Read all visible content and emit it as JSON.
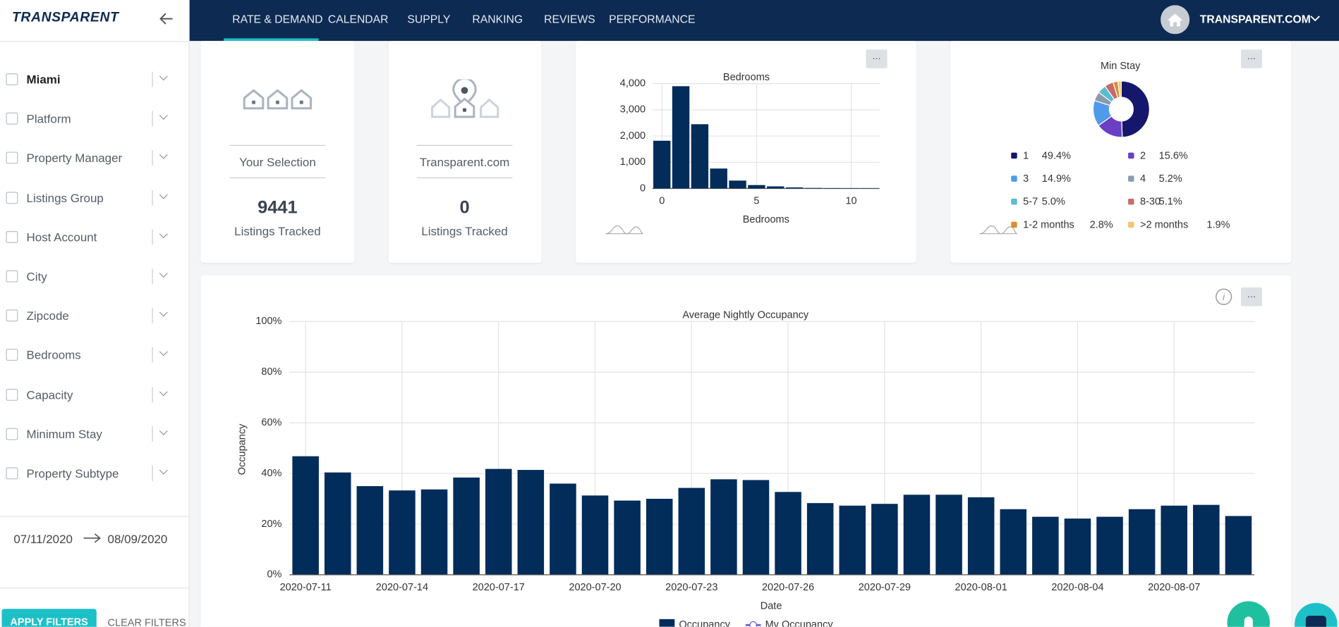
{
  "nav": {
    "brand": "TRANSPARENT",
    "tabs": [
      "RATE & DEMAND",
      "CALENDAR",
      "SUPPLY",
      "RANKING",
      "REVIEWS",
      "PERFORMANCE"
    ],
    "account": "TRANSPARENT.COM"
  },
  "sidebar": {
    "filters": [
      "Miami",
      "Platform",
      "Property Manager",
      "Listings Group",
      "Host Account",
      "City",
      "Zipcode",
      "Bedrooms",
      "Capacity",
      "Minimum Stay",
      "Property Subtype"
    ],
    "date_from": "07/11/2020",
    "date_to": "08/09/2020",
    "apply": "APPLY FILTERS",
    "clear": "CLEAR FILTERS"
  },
  "cards": [
    {
      "label": "Your Selection",
      "value": "9441",
      "caption": "Listings Tracked"
    },
    {
      "label": "Transparent.com",
      "value": "0",
      "caption": "Listings Tracked"
    }
  ],
  "chart_data": [
    {
      "type": "histogram",
      "title": "Bedrooms",
      "x_label": "Bedrooms",
      "color": "#022c5a",
      "bins": [
        -0.5,
        0.5,
        1.5,
        2.5,
        3.5,
        4.5,
        5.5,
        6.5,
        7.5,
        8.5,
        9.5,
        10.5,
        11.5
      ],
      "values": [
        1820,
        3900,
        2450,
        760,
        300,
        130,
        80,
        40,
        20,
        15,
        10,
        8
      ],
      "xlim": [
        -0.5,
        11.5
      ],
      "xticks": [
        0,
        5,
        10
      ],
      "ylim": [
        0,
        4000
      ],
      "yticks": [
        0,
        {
          "value": 1000,
          "label": "1,000"
        },
        {
          "value": 2000,
          "label": "2,000"
        },
        {
          "value": 3000,
          "label": "3,000"
        },
        {
          "value": 4000,
          "label": "4,000"
        }
      ],
      "grid": true
    },
    {
      "type": "pie",
      "title": "Min Stay",
      "donut": true,
      "categories": [
        "1",
        "2",
        "3",
        "4",
        "5-7",
        "8-30",
        "1-2 months",
        ">2 months"
      ],
      "values": [
        49.4,
        15.6,
        14.9,
        5.2,
        5.0,
        5.1,
        2.8,
        1.9
      ],
      "value_labels": [
        "49.4%",
        "15.6%",
        "14.9%",
        "5.2%",
        "5.0%",
        "5.1%",
        "2.8%",
        "1.9%"
      ],
      "colors": [
        "#14176b",
        "#6a3fc4",
        "#4f9bea",
        "#8a9bad",
        "#5bbccc",
        "#c96a6a",
        "#d9902f",
        "#f3c46f"
      ]
    },
    {
      "type": "bar",
      "title": "Average Nightly Occupancy",
      "x_label": "Date",
      "y_label": "Occupancy",
      "categories": [
        "2020-07-11",
        null,
        null,
        "2020-07-14",
        null,
        null,
        "2020-07-17",
        null,
        null,
        "2020-07-20",
        null,
        null,
        "2020-07-23",
        null,
        null,
        "2020-07-26",
        null,
        null,
        "2020-07-29",
        null,
        null,
        "2020-08-01",
        null,
        null,
        "2020-08-04",
        null,
        null,
        "2020-08-07",
        null,
        null
      ],
      "series": [
        {
          "name": "Occupancy",
          "color": "#022c5a",
          "values": [
            46.8,
            40.4,
            35,
            33.3,
            33.7,
            38.4,
            41.8,
            41.4,
            36,
            31.3,
            29.3,
            30,
            34.3,
            37.7,
            37.4,
            32.7,
            28.3,
            27.3,
            28,
            31.6,
            31.6,
            30.6,
            25.9,
            22.9,
            22.2,
            22.9,
            25.9,
            27.3,
            27.6,
            23.2
          ]
        },
        {
          "name": "My Occupancy",
          "color": "#5a4fcf",
          "values": [
            null,
            null,
            null,
            null,
            null,
            null,
            null,
            null,
            null,
            null,
            null,
            null,
            null,
            null,
            null,
            null,
            null,
            null,
            null,
            null,
            null,
            null,
            null,
            null,
            null,
            null,
            null,
            null,
            null,
            null
          ]
        }
      ],
      "ylim": [
        0,
        100
      ],
      "yticks": [
        {
          "value": 0,
          "label": "0%"
        },
        {
          "value": 20,
          "label": "20%"
        },
        {
          "value": 40,
          "label": "40%"
        },
        {
          "value": 60,
          "label": "60%"
        },
        {
          "value": 80,
          "label": "80%"
        },
        {
          "value": 100,
          "label": "100%"
        }
      ],
      "grid": true
    }
  ]
}
